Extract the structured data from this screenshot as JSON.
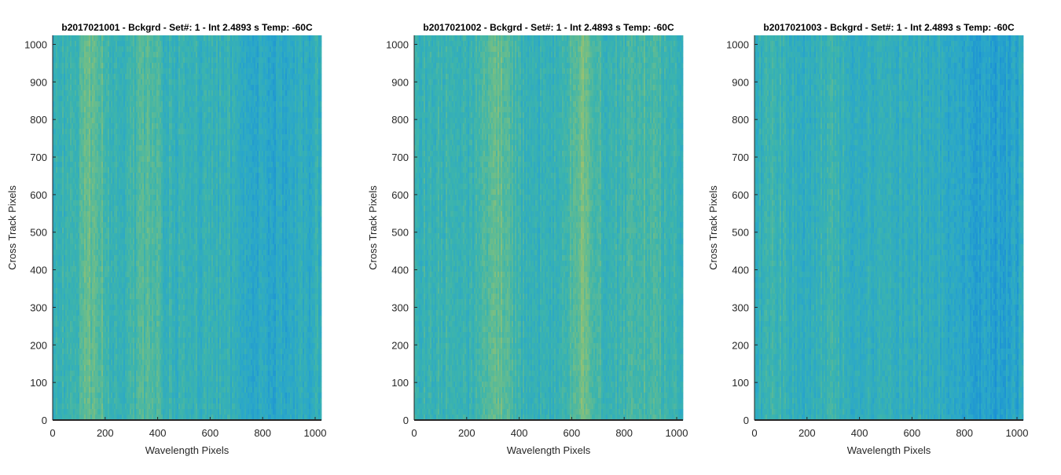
{
  "chart_data": [
    {
      "type": "heatmap",
      "title": "b2017021001 - Bckgrd - Set#: 1 - Int 2.4893 s Temp: -60C",
      "xlabel": "Wavelength Pixels",
      "ylabel": "Cross Track Pixels",
      "xlim": [
        0,
        1024
      ],
      "ylim": [
        0,
        1024
      ],
      "xticks": [
        0,
        200,
        400,
        600,
        800,
        1000
      ],
      "yticks": [
        0,
        100,
        200,
        300,
        400,
        500,
        600,
        700,
        800,
        900,
        1000
      ],
      "bright_bands": [
        {
          "x": 150,
          "strength": 0.3
        },
        {
          "x": 360,
          "strength": 0.18
        }
      ],
      "dark_regions": [
        {
          "x": 850,
          "strength": 0.16
        }
      ],
      "base_level": 0.42,
      "colormap": [
        "#1a8fd6",
        "#2aa7c9",
        "#3cb4ad",
        "#6cbd8a",
        "#a6c26a"
      ]
    },
    {
      "type": "heatmap",
      "title": "b2017021002 - Bckgrd - Set#: 1 - Int 2.4893 s Temp: -60C",
      "xlabel": "Wavelength Pixels",
      "ylabel": "Cross Track Pixels",
      "xlim": [
        0,
        1024
      ],
      "ylim": [
        0,
        1024
      ],
      "xticks": [
        0,
        200,
        400,
        600,
        800,
        1000
      ],
      "yticks": [
        0,
        100,
        200,
        300,
        400,
        500,
        600,
        700,
        800,
        900,
        1000
      ],
      "bright_bands": [
        {
          "x": 320,
          "strength": 0.28
        },
        {
          "x": 640,
          "strength": 0.32
        },
        {
          "x": 880,
          "strength": 0.12
        }
      ],
      "dark_regions": [
        {
          "x": 480,
          "strength": 0.06
        }
      ],
      "base_level": 0.46,
      "colormap": [
        "#1a8fd6",
        "#2aa7c9",
        "#3cb4ad",
        "#6cbd8a",
        "#a6c26a"
      ]
    },
    {
      "type": "heatmap",
      "title": "b2017021003 - Bckgrd - Set#: 1 - Int 2.4893 s Temp: -60C",
      "xlabel": "Wavelength Pixels",
      "ylabel": "Cross Track Pixels",
      "xlim": [
        0,
        1024
      ],
      "ylim": [
        0,
        1024
      ],
      "xticks": [
        0,
        200,
        400,
        600,
        800,
        1000
      ],
      "yticks": [
        0,
        100,
        200,
        300,
        400,
        500,
        600,
        700,
        800,
        900,
        1000
      ],
      "bright_bands": [
        {
          "x": 80,
          "strength": 0.12
        },
        {
          "x": 300,
          "strength": 0.1
        }
      ],
      "dark_regions": [
        {
          "x": 900,
          "strength": 0.18
        }
      ],
      "base_level": 0.36,
      "colormap": [
        "#1a8fd6",
        "#2aa7c9",
        "#3cb4ad",
        "#6cbd8a",
        "#a6c26a"
      ]
    }
  ]
}
